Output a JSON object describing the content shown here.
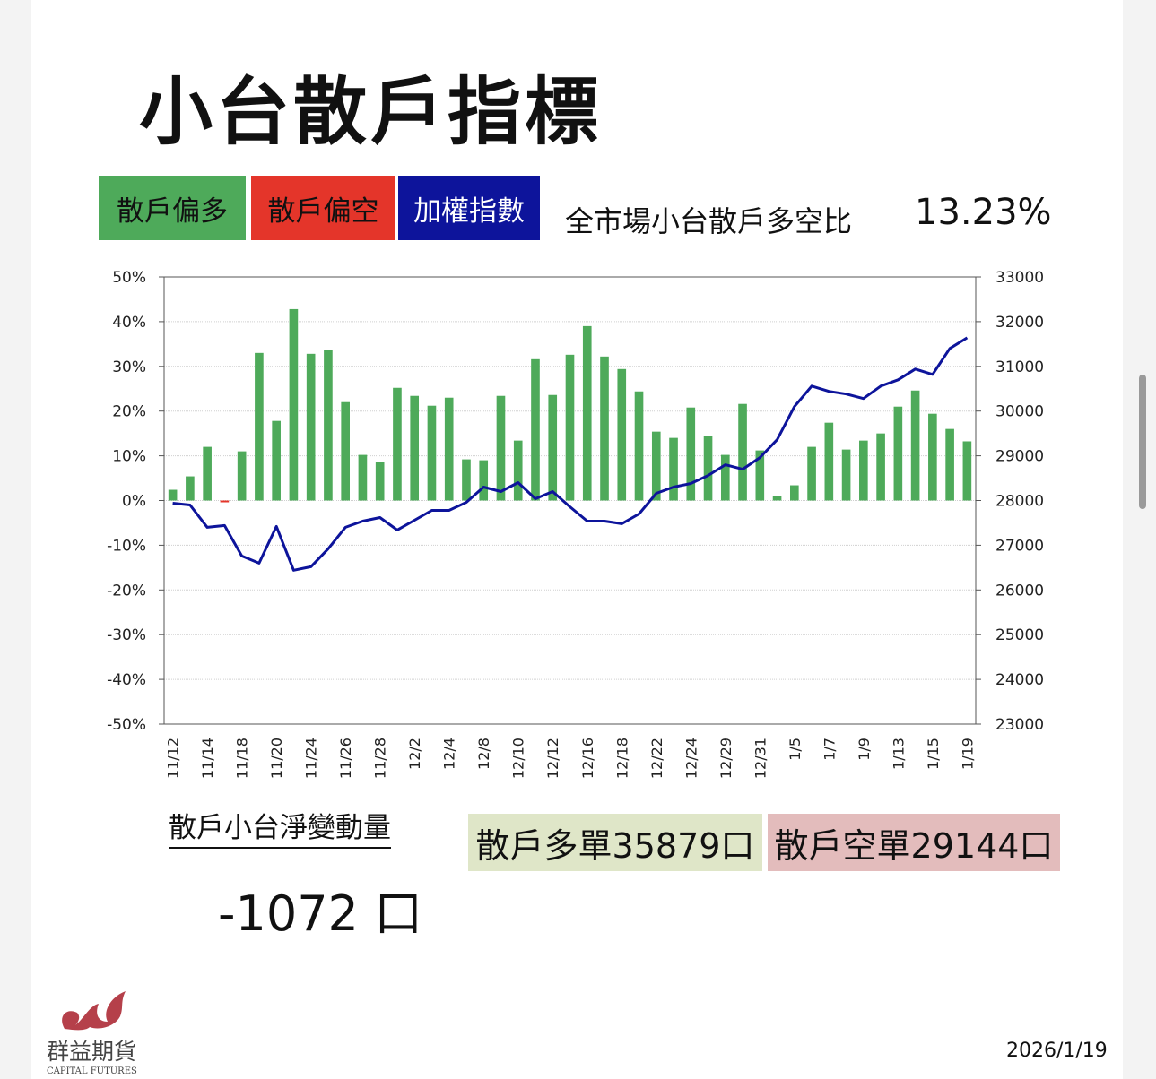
{
  "title": "小台散戶指標",
  "legend": {
    "bullish": {
      "label": "散戶偏多",
      "color": "#4eaa5a"
    },
    "bearish": {
      "label": "散戶偏空",
      "color": "#e4352a"
    },
    "index": {
      "label": "加權指數",
      "color": "#0d149b"
    }
  },
  "ratio": {
    "label": "全市場小台散戶多空比",
    "value": "13.23%"
  },
  "net_change": {
    "label": "散戶小台淨變動量",
    "value": "-1072 口"
  },
  "long_box": {
    "label": "散戶多單35879口",
    "color": "#dfe6c8"
  },
  "short_box": {
    "label": "散戶空單29144口",
    "color": "#e3bcbc"
  },
  "logo": {
    "name": "群益期貨",
    "sub": "CAPITAL FUTURES"
  },
  "date": "2026/1/19",
  "chart_data": {
    "type": "bar+line",
    "categories": [
      "11/12",
      "11/13",
      "11/14",
      "11/17",
      "11/18",
      "11/19",
      "11/20",
      "11/21",
      "11/24",
      "11/25",
      "11/26",
      "11/27",
      "11/28",
      "12/1",
      "12/2",
      "12/3",
      "12/4",
      "12/5",
      "12/8",
      "12/9",
      "12/10",
      "12/11",
      "12/12",
      "12/15",
      "12/16",
      "12/17",
      "12/18",
      "12/19",
      "12/22",
      "12/23",
      "12/24",
      "12/26",
      "12/29",
      "12/30",
      "12/31",
      "1/2",
      "1/5",
      "1/6",
      "1/7",
      "1/8",
      "1/9",
      "1/12",
      "1/13",
      "1/14",
      "1/15",
      "1/16",
      "1/19"
    ],
    "tick_labels": [
      "11/12",
      "11/14",
      "11/18",
      "11/20",
      "11/24",
      "11/26",
      "11/28",
      "12/2",
      "12/4",
      "12/8",
      "12/10",
      "12/12",
      "12/16",
      "12/18",
      "12/22",
      "12/24",
      "12/29",
      "12/31",
      "1/5",
      "1/7",
      "1/9",
      "1/13",
      "1/15",
      "1/19"
    ],
    "series": [
      {
        "name": "散戶多空比(%)",
        "axis": "left",
        "type": "bar",
        "values": [
          2.4,
          5.4,
          12,
          -0.4,
          11,
          33,
          17.8,
          42.8,
          32.8,
          33.6,
          22,
          10.2,
          8.6,
          25.2,
          23.4,
          21.2,
          23,
          9.2,
          9,
          23.4,
          13.4,
          31.6,
          23.6,
          32.6,
          39,
          32.2,
          29.4,
          24.4,
          15.4,
          14,
          20.8,
          14.4,
          10.2,
          21.6,
          11.2,
          1,
          3.4,
          12,
          17.4,
          11.4,
          13.4,
          15,
          21,
          24.6,
          19.4,
          16,
          13.23
        ]
      },
      {
        "name": "加權指數",
        "axis": "right",
        "type": "line",
        "values": [
          27940,
          27900,
          27400,
          27440,
          26760,
          26600,
          27420,
          26440,
          26520,
          26920,
          27400,
          27540,
          27620,
          27340,
          27560,
          27780,
          27780,
          27960,
          28300,
          28200,
          28400,
          28040,
          28200,
          27860,
          27540,
          27540,
          27480,
          27700,
          28160,
          28300,
          28380,
          28560,
          28800,
          28700,
          28960,
          29360,
          30100,
          30560,
          30440,
          30380,
          30280,
          30560,
          30700,
          30940,
          30820,
          31400,
          31640
        ]
      }
    ],
    "left_axis": {
      "range": [
        -50,
        50
      ],
      "ticks": [
        "50%",
        "40%",
        "30%",
        "20%",
        "10%",
        "0%",
        "-10%",
        "-20%",
        "-30%",
        "-40%",
        "-50%"
      ]
    },
    "right_axis": {
      "range": [
        23000,
        33000
      ],
      "ticks": [
        "33000",
        "32000",
        "31000",
        "30000",
        "29000",
        "28000",
        "27000",
        "26000",
        "25000",
        "24000",
        "23000"
      ]
    },
    "grid": true
  }
}
